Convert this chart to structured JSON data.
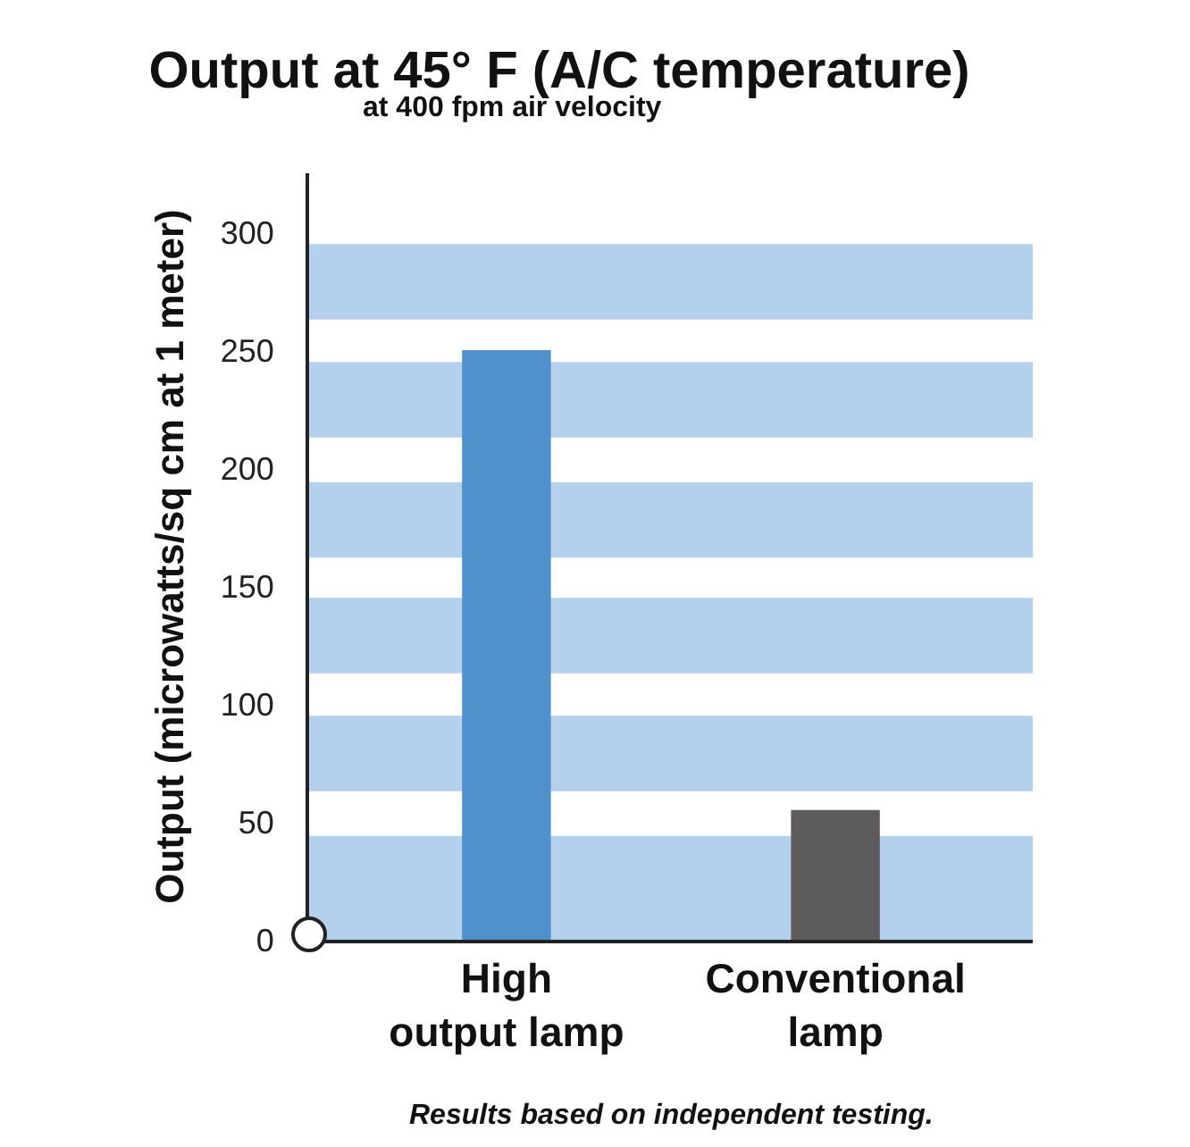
{
  "chart_data": {
    "type": "bar",
    "title": "Output at 45° F (A/C temperature)",
    "subtitle": "at 400 fpm air velocity",
    "ylabel": "Output (microwatts/sq cm at 1 meter)",
    "categories": [
      "High output lamp",
      "Conventional lamp"
    ],
    "values": [
      250,
      55
    ],
    "colors": [
      "#5090cc",
      "#5d5b5b"
    ],
    "ylim": [
      0,
      325
    ],
    "yticks": [
      0,
      50,
      100,
      150,
      200,
      250,
      300
    ],
    "grid": false,
    "bands": [
      {
        "axis": "y",
        "from": 0,
        "to": 44,
        "color": "#b3d1ec"
      },
      {
        "axis": "y",
        "from": 63,
        "to": 95,
        "color": "#b3d1ec"
      },
      {
        "axis": "y",
        "from": 113,
        "to": 145,
        "color": "#b3d1ec"
      },
      {
        "axis": "y",
        "from": 162,
        "to": 194,
        "color": "#b3d1ec"
      },
      {
        "axis": "y",
        "from": 213,
        "to": 245,
        "color": "#b3d1ec"
      },
      {
        "axis": "y",
        "from": 263,
        "to": 295,
        "color": "#b3d1ec"
      }
    ],
    "annotations": [
      "Results based on independent testing."
    ]
  }
}
